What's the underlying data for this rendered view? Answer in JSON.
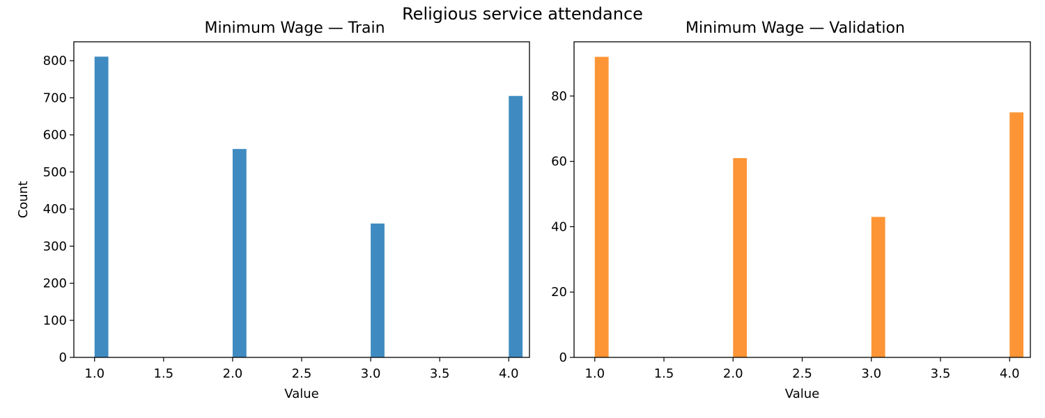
{
  "suptitle": "Religious service attendance",
  "chart_data": [
    {
      "type": "bar",
      "title": "Minimum Wage — Train",
      "xlabel": "Value",
      "ylabel": "Count",
      "x": [
        1.0,
        2.0,
        3.0,
        4.0
      ],
      "values": [
        811,
        562,
        361,
        705
      ],
      "xlim": [
        0.85,
        4.15
      ],
      "ylim": [
        0,
        851
      ],
      "xticks": [
        "1.0",
        "1.5",
        "2.0",
        "2.5",
        "3.0",
        "3.5",
        "4.0"
      ],
      "yticks": [
        "0",
        "100",
        "200",
        "300",
        "400",
        "500",
        "600",
        "700",
        "800"
      ],
      "color": "#3f8bc1",
      "grid": false
    },
    {
      "type": "bar",
      "title": "Minimum Wage — Validation",
      "xlabel": "Value",
      "ylabel": "",
      "x": [
        1.0,
        2.0,
        3.0,
        4.0
      ],
      "values": [
        92,
        61,
        43,
        75
      ],
      "xlim": [
        0.85,
        4.15
      ],
      "ylim": [
        0,
        96.6
      ],
      "xticks": [
        "1.0",
        "1.5",
        "2.0",
        "2.5",
        "3.0",
        "3.5",
        "4.0"
      ],
      "yticks": [
        "0",
        "20",
        "40",
        "60",
        "80"
      ],
      "color": "#fd9536",
      "grid": false
    }
  ]
}
